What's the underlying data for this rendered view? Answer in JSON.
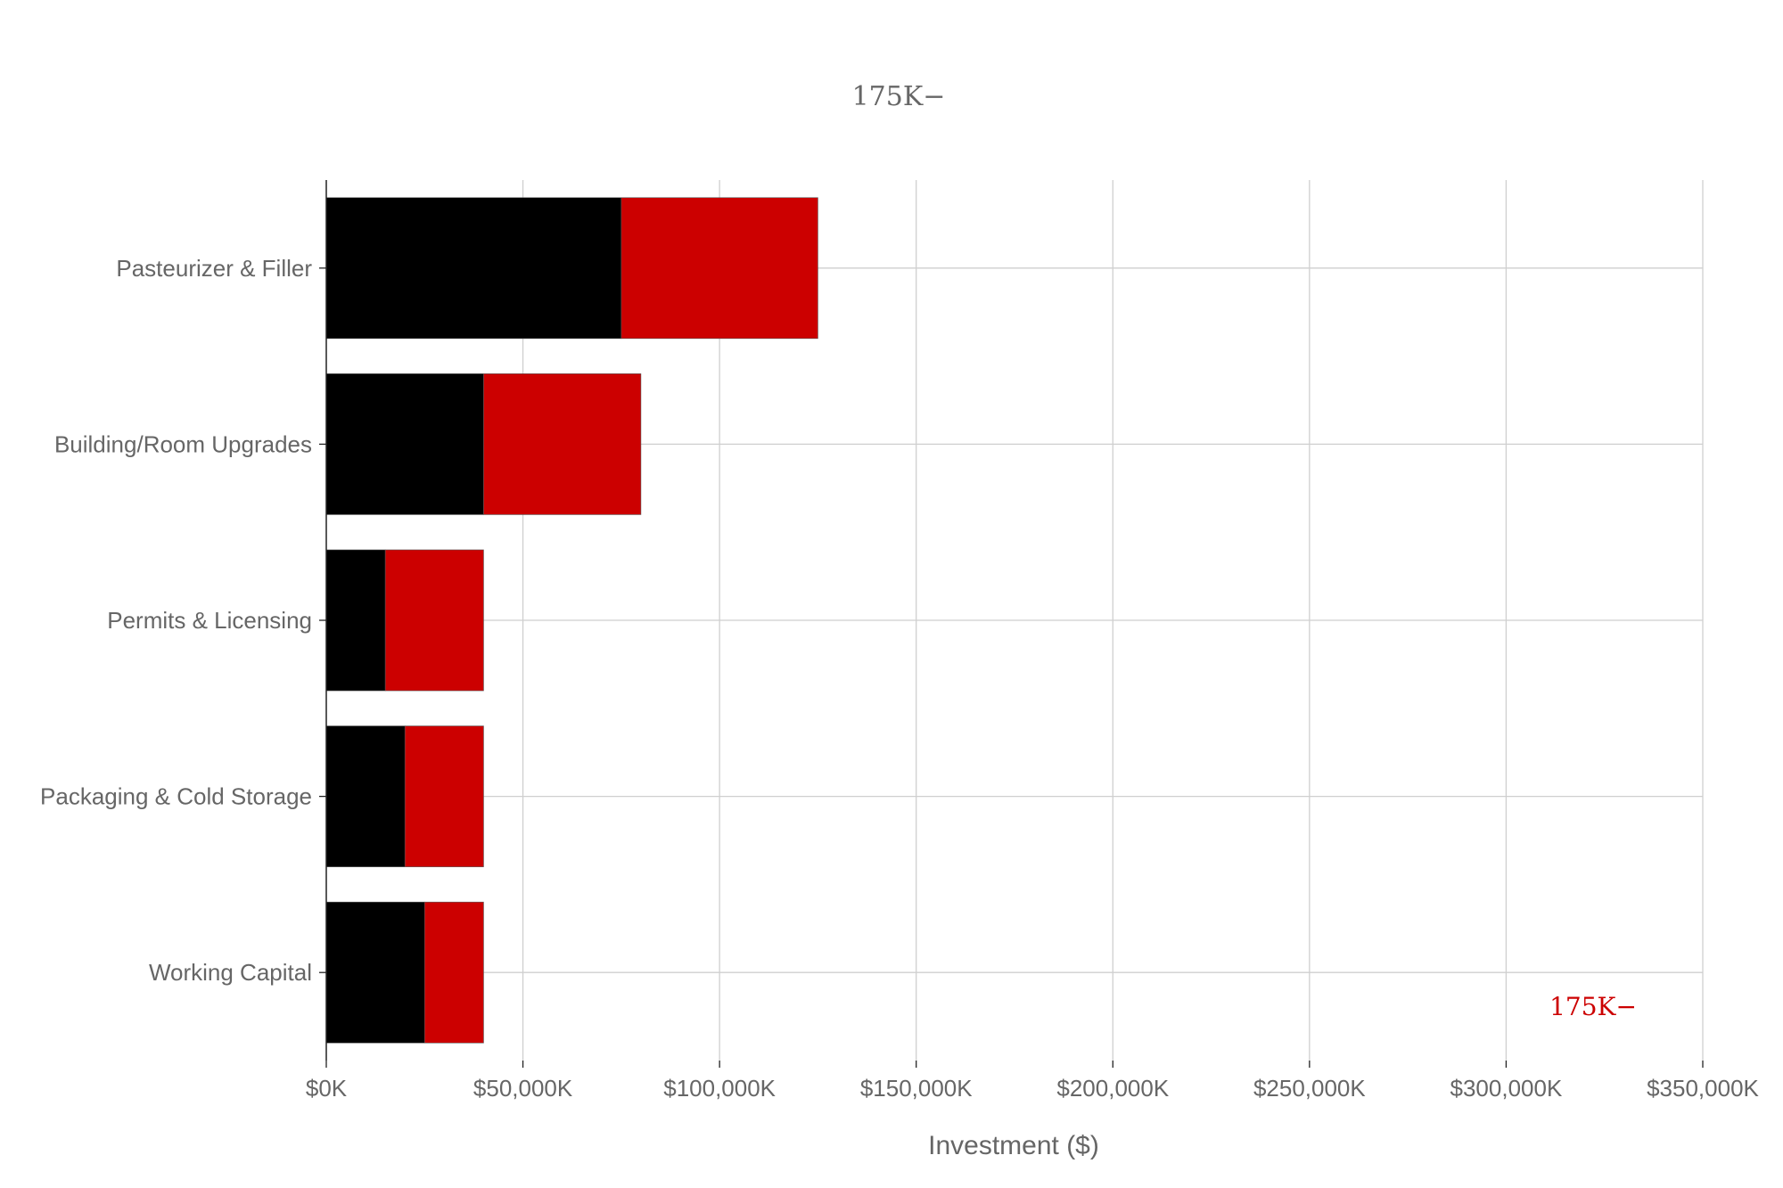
{
  "chart_data": {
    "type": "bar",
    "orientation": "horizontal",
    "stacked": true,
    "title": "175K−",
    "annotation": "175K−",
    "xlabel": "Investment ($)",
    "ylabel": "",
    "xlim": [
      0,
      350000
    ],
    "xticks": [
      0,
      50000,
      100000,
      150000,
      200000,
      250000,
      300000,
      350000
    ],
    "xtick_labels": [
      "$0K",
      "$50,000K",
      "$100,000K",
      "$150,000K",
      "$200,000K",
      "$250,000K",
      "$300,000K",
      "$350,000K"
    ],
    "grid": true,
    "categories": [
      "Pasteurizer & Filler",
      "Building/Room Upgrades",
      "Permits & Licensing",
      "Packaging & Cold Storage",
      "Working Capital"
    ],
    "series": [
      {
        "values": [
          75000,
          40000,
          15000,
          20000,
          25000
        ],
        "color": "#000000"
      },
      {
        "values": [
          50000,
          40000,
          25000,
          20000,
          15000
        ],
        "color": "#cc0000"
      }
    ],
    "title_color": "#666666",
    "annotation_color": "#cc0000"
  }
}
